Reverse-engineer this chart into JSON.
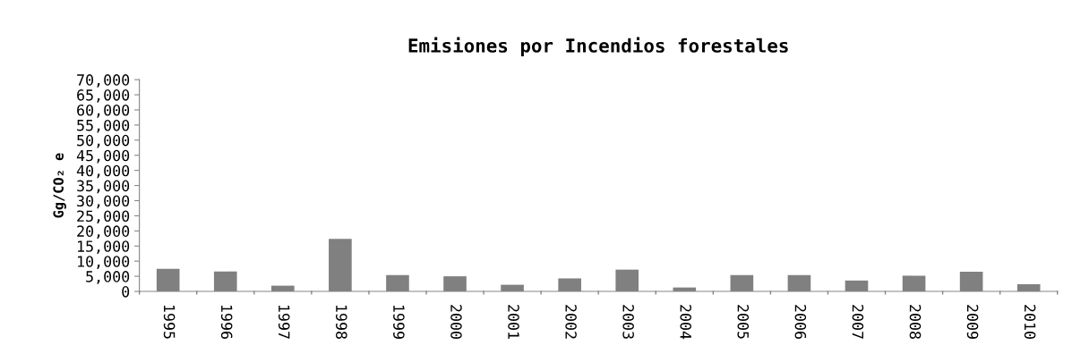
{
  "chart_data": {
    "type": "bar",
    "title": "Emisiones por Incendios forestales",
    "ylabel": "Gg/CO₂ e",
    "categories": [
      "1995",
      "1996",
      "1997",
      "1998",
      "1999",
      "2000",
      "2001",
      "2002",
      "2003",
      "2004",
      "2005",
      "2006",
      "2007",
      "2008",
      "2009",
      "2010"
    ],
    "values": [
      7500,
      6600,
      1900,
      17400,
      5400,
      5000,
      2200,
      4300,
      7200,
      1300,
      5400,
      5400,
      3600,
      5200,
      6500,
      2400
    ],
    "color": "#808080",
    "ylim": [
      0,
      70000
    ],
    "yticks": [
      {
        "value": 0,
        "label": "0"
      },
      {
        "value": 5000,
        "label": "5,000"
      },
      {
        "value": 10000,
        "label": "10,000"
      },
      {
        "value": 15000,
        "label": "15,000"
      },
      {
        "value": 20000,
        "label": "20,000"
      },
      {
        "value": 25000,
        "label": "25,000"
      },
      {
        "value": 30000,
        "label": "30,000"
      },
      {
        "value": 35000,
        "label": "35,000"
      },
      {
        "value": 40000,
        "label": "40,000"
      },
      {
        "value": 45000,
        "label": "45,000"
      },
      {
        "value": 50000,
        "label": "50,000"
      },
      {
        "value": 55000,
        "label": "55,000"
      },
      {
        "value": 60000,
        "label": "60,000"
      },
      {
        "value": 65000,
        "label": "65,000"
      },
      {
        "value": 70000,
        "label": "70,000"
      }
    ],
    "grid": false,
    "legend": false
  }
}
